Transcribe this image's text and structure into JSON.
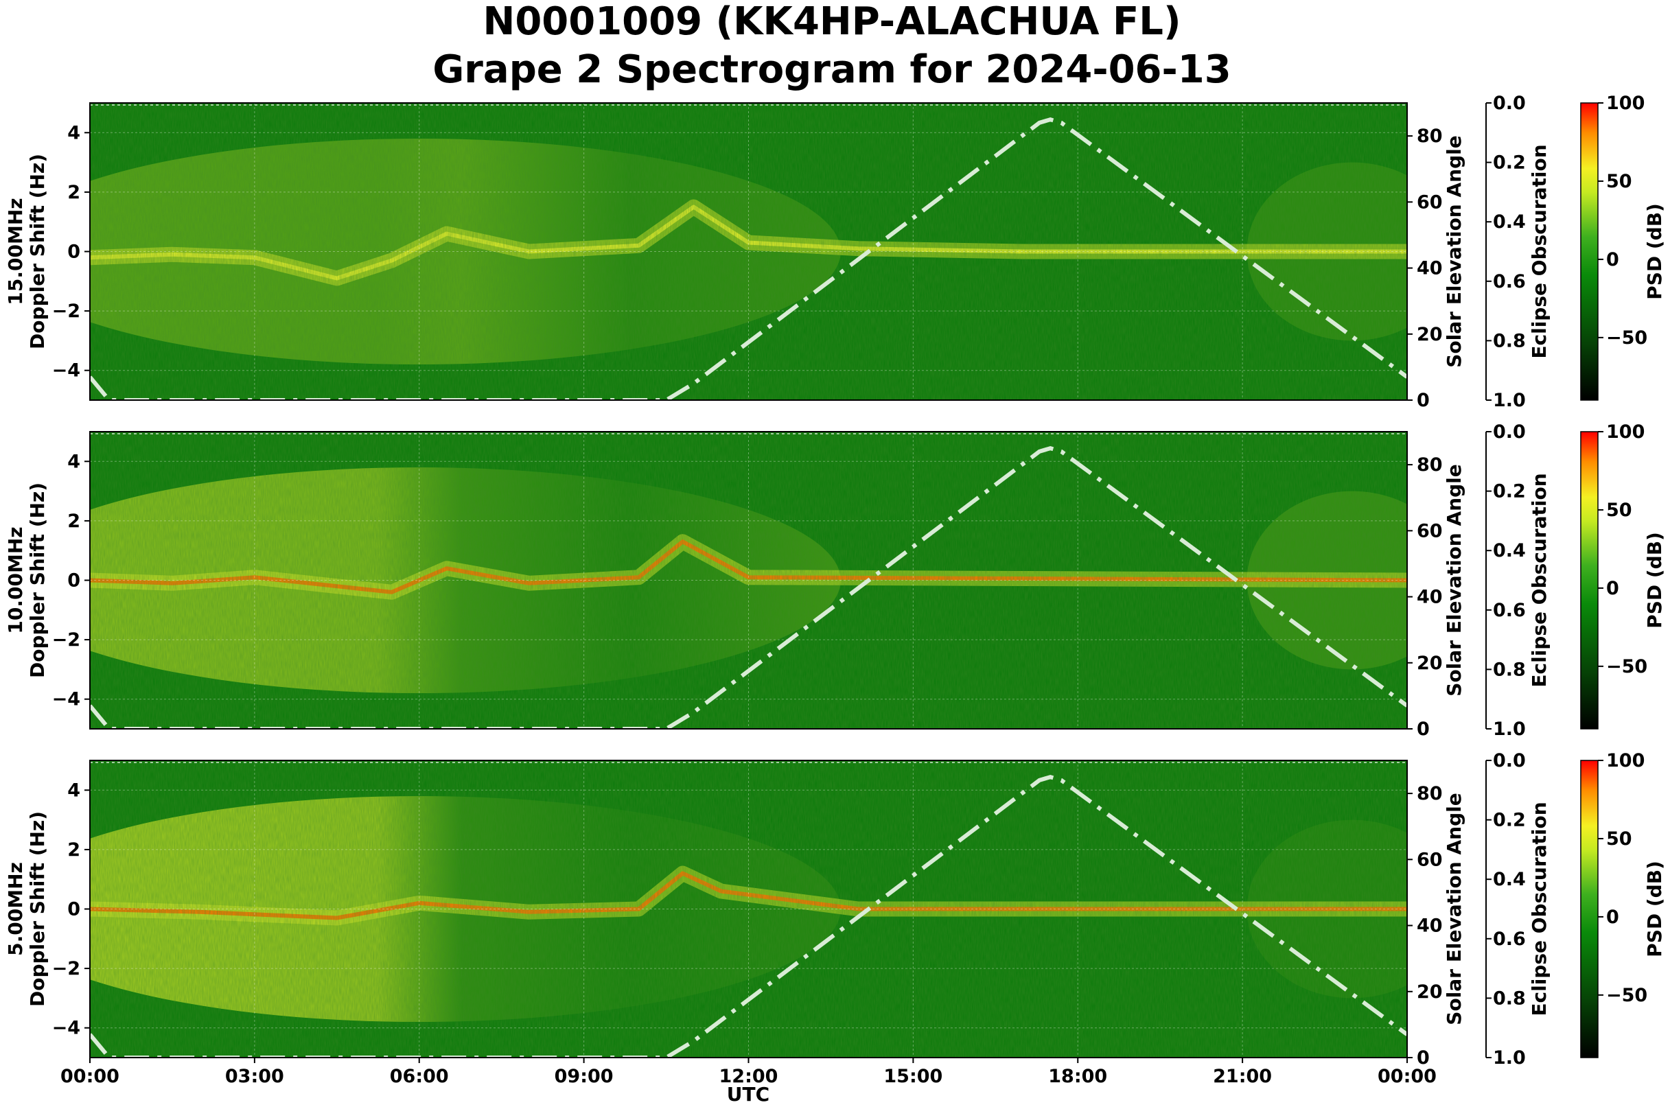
{
  "title_line1": "N0001009 (KK4HP-ALACHUA FL)",
  "title_line2": "Grape 2 Spectrogram for 2024-06-13",
  "x_axis_label": "UTC",
  "x_tick_labels": [
    "00:00",
    "03:00",
    "06:00",
    "09:00",
    "12:00",
    "15:00",
    "18:00",
    "21:00",
    "00:00"
  ],
  "colors": {
    "background_green": "#0a7a0a",
    "signal_yellow": "#e6f02a",
    "signal_orange": "#ff7a00",
    "elevation_line": "#d9ecd6"
  },
  "chart_data": [
    {
      "type": "heatmap",
      "ylabel": "15.00MHz\nDoppler Shift (Hz)",
      "ylim": [
        -5,
        5
      ],
      "yticks": [
        -4,
        -2,
        0,
        2,
        4
      ],
      "xlim_hours": [
        0,
        24
      ],
      "right_axis_1": {
        "label": "Solar Elevation Angle",
        "ylim": [
          0,
          90
        ],
        "ticks": [
          0,
          20,
          40,
          60,
          80
        ]
      },
      "right_axis_2": {
        "label": "Eclipse Obscuration",
        "ylim": [
          1.0,
          0.0
        ],
        "ticks": [
          "0.0",
          "0.2",
          "0.4",
          "0.6",
          "0.8",
          "1.0"
        ]
      },
      "colorbar": {
        "label": "PSD (dB)",
        "range": [
          -90,
          100
        ],
        "ticks": [
          -50,
          0,
          50,
          100
        ]
      },
      "doppler_trace": [
        {
          "t": 0,
          "hz": -0.2
        },
        {
          "t": 1.5,
          "hz": -0.1
        },
        {
          "t": 3,
          "hz": -0.2
        },
        {
          "t": 4.5,
          "hz": -0.9
        },
        {
          "t": 5.5,
          "hz": -0.3
        },
        {
          "t": 6.5,
          "hz": 0.6
        },
        {
          "t": 8,
          "hz": 0.0
        },
        {
          "t": 10,
          "hz": 0.2
        },
        {
          "t": 11,
          "hz": 1.5
        },
        {
          "t": 12,
          "hz": 0.3
        },
        {
          "t": 14,
          "hz": 0.1
        },
        {
          "t": 17,
          "hz": 0.0
        },
        {
          "t": 24,
          "hz": 0.0
        }
      ],
      "activity": [
        0.45,
        0.6,
        0.35
      ]
    },
    {
      "type": "heatmap",
      "ylabel": "10.00MHz\nDoppler Shift (Hz)",
      "ylim": [
        -5,
        5
      ],
      "yticks": [
        -4,
        -2,
        0,
        2,
        4
      ],
      "xlim_hours": [
        0,
        24
      ],
      "right_axis_1": {
        "label": "Solar Elevation Angle",
        "ylim": [
          0,
          90
        ],
        "ticks": [
          0,
          20,
          40,
          60,
          80
        ]
      },
      "right_axis_2": {
        "label": "Eclipse Obscuration",
        "ylim": [
          1.0,
          0.0
        ],
        "ticks": [
          "0.0",
          "0.2",
          "0.4",
          "0.6",
          "0.8",
          "1.0"
        ]
      },
      "colorbar": {
        "label": "PSD (dB)",
        "range": [
          -90,
          100
        ],
        "ticks": [
          -50,
          0,
          50,
          100
        ]
      },
      "doppler_trace": [
        {
          "t": 0,
          "hz": 0.0
        },
        {
          "t": 1.5,
          "hz": -0.1
        },
        {
          "t": 3,
          "hz": 0.1
        },
        {
          "t": 4.5,
          "hz": -0.2
        },
        {
          "t": 5.5,
          "hz": -0.4
        },
        {
          "t": 6.5,
          "hz": 0.4
        },
        {
          "t": 8,
          "hz": -0.1
        },
        {
          "t": 10,
          "hz": 0.1
        },
        {
          "t": 10.8,
          "hz": 1.3
        },
        {
          "t": 12,
          "hz": 0.1
        },
        {
          "t": 24,
          "hz": 0.0
        }
      ],
      "activity": [
        0.75,
        0.35,
        0.45
      ]
    },
    {
      "type": "heatmap",
      "ylabel": "5.00MHz\nDoppler Shift (Hz)",
      "ylim": [
        -5,
        5
      ],
      "yticks": [
        -4,
        -2,
        0,
        2,
        4
      ],
      "xlim_hours": [
        0,
        24
      ],
      "right_axis_1": {
        "label": "Solar Elevation Angle",
        "ylim": [
          0,
          90
        ],
        "ticks": [
          0,
          20,
          40,
          60,
          80
        ]
      },
      "right_axis_2": {
        "label": "Eclipse Obscuration",
        "ylim": [
          1.0,
          0.0
        ],
        "ticks": [
          "0.0",
          "0.2",
          "0.4",
          "0.6",
          "0.8",
          "1.0"
        ]
      },
      "colorbar": {
        "label": "PSD (dB)",
        "range": [
          -90,
          100
        ],
        "ticks": [
          -50,
          0,
          50,
          100
        ]
      },
      "doppler_trace": [
        {
          "t": 0,
          "hz": 0.0
        },
        {
          "t": 2,
          "hz": -0.1
        },
        {
          "t": 4.5,
          "hz": -0.3
        },
        {
          "t": 6,
          "hz": 0.2
        },
        {
          "t": 8,
          "hz": -0.1
        },
        {
          "t": 10,
          "hz": 0.0
        },
        {
          "t": 10.8,
          "hz": 1.2
        },
        {
          "t": 11.5,
          "hz": 0.6
        },
        {
          "t": 14,
          "hz": 0.0
        },
        {
          "t": 24,
          "hz": 0.0
        }
      ],
      "activity": [
        0.9,
        0.25,
        0.2
      ]
    }
  ],
  "solar_elevation_deg": [
    {
      "t": 0,
      "deg": 7
    },
    {
      "t": 0.35,
      "deg": 0
    },
    {
      "t": 10.5,
      "deg": 0
    },
    {
      "t": 11,
      "deg": 5
    },
    {
      "t": 17.3,
      "deg": 84
    },
    {
      "t": 17.5,
      "deg": 85
    },
    {
      "t": 17.7,
      "deg": 84
    },
    {
      "t": 24,
      "deg": 7
    }
  ]
}
